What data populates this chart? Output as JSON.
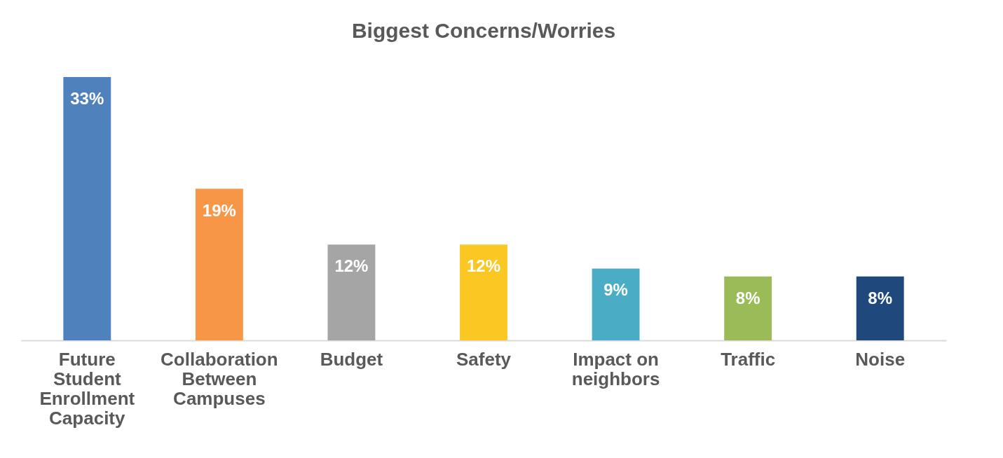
{
  "chart_data": {
    "type": "bar",
    "title": "Biggest Concerns/Worries",
    "categories": [
      "Future Student Enrollment Capacity",
      "Collaboration Between Campuses",
      "Budget",
      "Safety",
      "Impact on neighbors",
      "Traffic",
      "Noise"
    ],
    "values": [
      33,
      19,
      12,
      12,
      9,
      8,
      8
    ],
    "colors": [
      "#4f81bd",
      "#f79646",
      "#a5a5a5",
      "#fac723",
      "#4bacc6",
      "#9bbb59",
      "#1f497d"
    ],
    "value_labels": [
      "33%",
      "19%",
      "12%",
      "12%",
      "9%",
      "8%",
      "8%"
    ],
    "ylim": [
      0,
      33
    ],
    "tick_labels": "x"
  }
}
